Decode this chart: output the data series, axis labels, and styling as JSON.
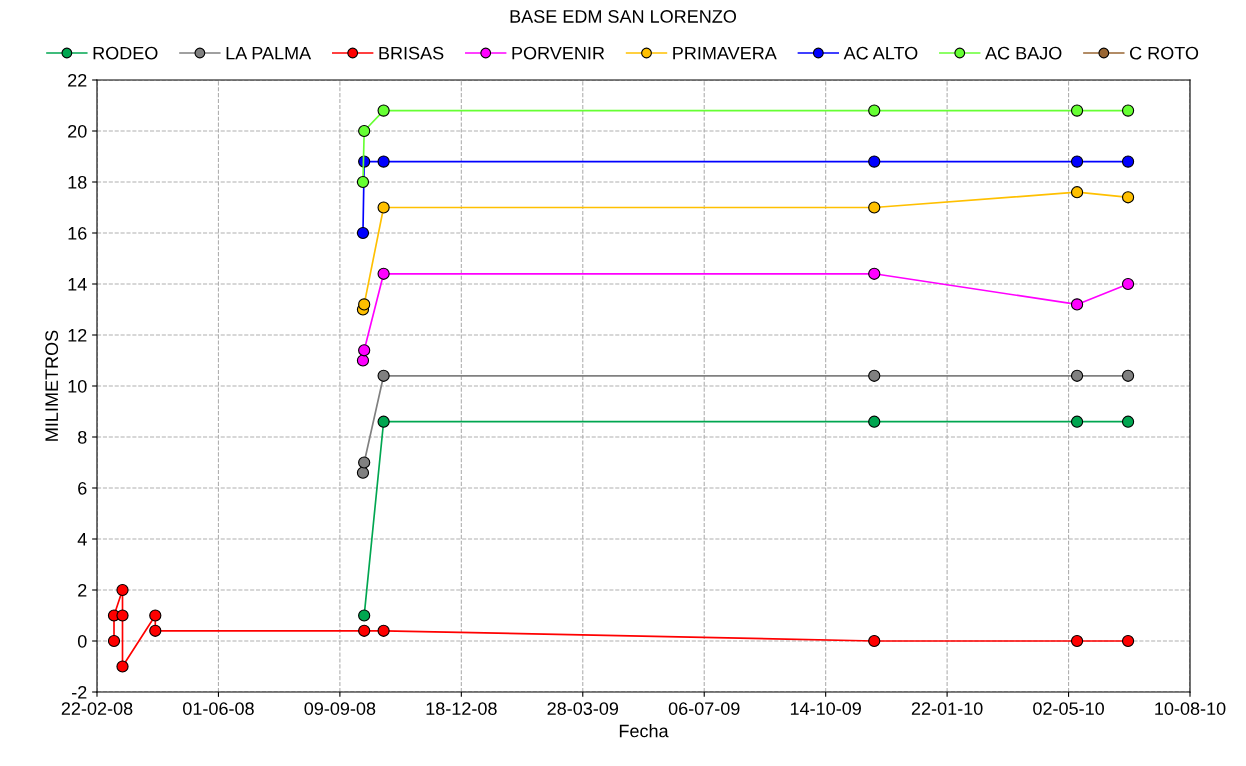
{
  "chart_data": {
    "type": "line",
    "title": "BASE EDM SAN LORENZO",
    "xlabel": "Fecha",
    "ylabel": "MILIMETROS",
    "xlim": [
      "2008-02-22",
      "2010-08-10"
    ],
    "xticks": [
      {
        "value": "2008-02-22",
        "label": "22-02-08"
      },
      {
        "value": "2008-06-01",
        "label": "01-06-08"
      },
      {
        "value": "2008-09-09",
        "label": "09-09-08"
      },
      {
        "value": "2008-12-18",
        "label": "18-12-08"
      },
      {
        "value": "2009-03-28",
        "label": "28-03-09"
      },
      {
        "value": "2009-07-06",
        "label": "06-07-09"
      },
      {
        "value": "2009-10-14",
        "label": "14-10-09"
      },
      {
        "value": "2010-01-22",
        "label": "22-01-10"
      },
      {
        "value": "2010-05-02",
        "label": "02-05-10"
      },
      {
        "value": "2010-08-10",
        "label": "10-08-10"
      }
    ],
    "ylim": [
      -2,
      22
    ],
    "yticks": [
      -2,
      0,
      2,
      4,
      6,
      8,
      10,
      12,
      14,
      16,
      18,
      20,
      22
    ],
    "grid": true,
    "legend": "top",
    "marker": "circle",
    "line_style": "solid",
    "x": [
      "2008-09-28",
      "2008-09-29",
      "2008-10-15",
      "2009-11-23",
      "2010-05-09",
      "2010-06-20"
    ],
    "series": [
      {
        "name": "RODEO",
        "color": "#00a650",
        "values": [
          null,
          1,
          8.6,
          8.6,
          8.6,
          8.6
        ]
      },
      {
        "name": "LA PALMA",
        "color": "#808080",
        "values": [
          6.6,
          7.0,
          10.4,
          10.4,
          10.4,
          10.4
        ]
      },
      {
        "name": "BRISAS",
        "color": "#ff0000",
        "x": [
          "2008-03-07",
          "2008-03-07",
          "2008-03-14",
          "2008-03-14",
          "2008-03-14",
          "2008-04-10",
          "2008-04-10",
          "2008-09-29",
          "2008-10-15",
          "2009-11-23",
          "2010-05-09",
          "2010-06-20"
        ],
        "values": [
          0,
          1,
          2,
          1,
          -1,
          1,
          0.4,
          0.4,
          0.4,
          0,
          0,
          0
        ]
      },
      {
        "name": "PORVENIR",
        "color": "#ff00ff",
        "values": [
          11,
          11.4,
          14.4,
          14.4,
          13.2,
          14.0
        ]
      },
      {
        "name": "PRIMAVERA",
        "color": "#ffc000",
        "values": [
          13,
          13.2,
          17,
          17,
          17.6,
          17.4
        ]
      },
      {
        "name": "AC ALTO",
        "color": "#0000ff",
        "values": [
          16,
          18.8,
          18.8,
          18.8,
          18.8,
          18.8
        ]
      },
      {
        "name": "AC BAJO",
        "color": "#66ff33",
        "values": [
          18,
          20,
          20.8,
          20.8,
          20.8,
          20.8
        ]
      },
      {
        "name": "C ROTO",
        "color": "#996633",
        "values": [
          null,
          null,
          null,
          null,
          null,
          null
        ]
      }
    ]
  }
}
